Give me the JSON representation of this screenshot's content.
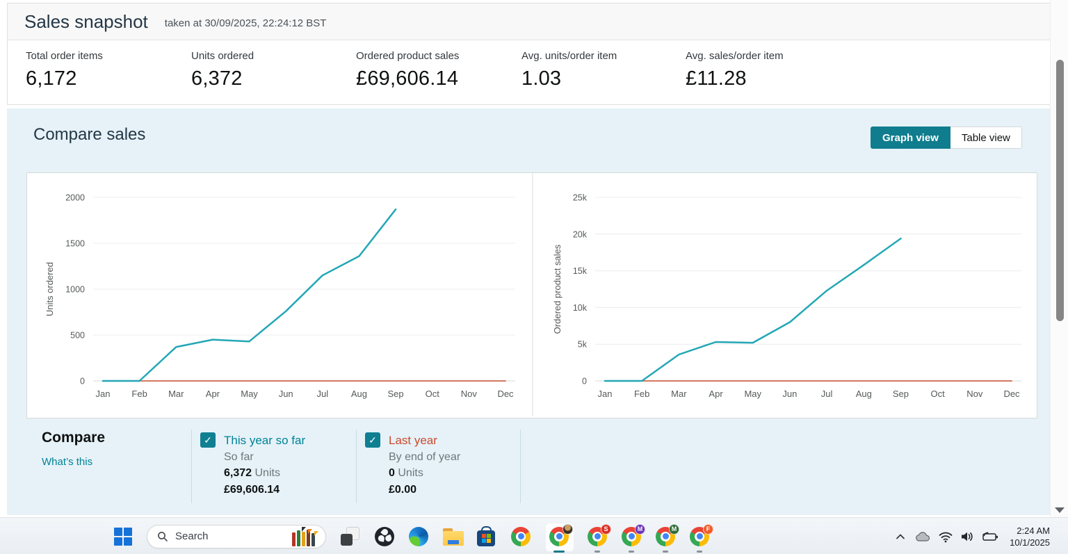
{
  "header": {
    "title": "Sales snapshot",
    "subtitle": "taken at 30/09/2025, 22:24:12 BST"
  },
  "stats": [
    {
      "label": "Total order items",
      "value": "6,172"
    },
    {
      "label": "Units ordered",
      "value": "6,372"
    },
    {
      "label": "Ordered product sales",
      "value": "£69,606.14"
    },
    {
      "label": "Avg. units/order item",
      "value": "1.03"
    },
    {
      "label": "Avg. sales/order item",
      "value": "£11.28"
    }
  ],
  "compare_sales": {
    "title": "Compare sales",
    "view_toggle": {
      "graph_label": "Graph view",
      "table_label": "Table view",
      "selected": "Graph view"
    },
    "legend": {
      "heading": "Compare",
      "link": "What’s this",
      "items": [
        {
          "label": "This year so far",
          "sublabel": "So far",
          "units_value": "6,372",
          "units_word": "Units",
          "sales": "£69,606.14",
          "checked": true,
          "color": "#008296"
        },
        {
          "label": "Last year",
          "sublabel": "By end of year",
          "units_value": "0",
          "units_word": "Units",
          "sales": "£0.00",
          "checked": true,
          "color": "#cc4a2e"
        }
      ]
    }
  },
  "chart_data": [
    {
      "type": "line",
      "title": "Units ordered by month",
      "xlabel": "",
      "ylabel": "Units ordered",
      "categories": [
        "Jan",
        "Feb",
        "Mar",
        "Apr",
        "May",
        "Jun",
        "Jul",
        "Aug",
        "Sep",
        "Oct",
        "Nov",
        "Dec"
      ],
      "ylim": [
        0,
        2000
      ],
      "grid": true,
      "y_ticks": [
        {
          "label": "0",
          "value": 0
        },
        {
          "label": "500",
          "value": 500
        },
        {
          "label": "1000",
          "value": 1000
        },
        {
          "label": "1500",
          "value": 1500
        },
        {
          "label": "2000",
          "value": 2000
        }
      ],
      "series": [
        {
          "name": "This year so far",
          "color": "#23a7b5",
          "values": [
            0,
            0,
            370,
            450,
            430,
            760,
            1150,
            1360,
            1870
          ]
        },
        {
          "name": "Last year",
          "color": "#d3795f",
          "values": [
            0,
            0,
            0,
            0,
            0,
            0,
            0,
            0,
            0,
            0,
            0,
            0
          ]
        }
      ]
    },
    {
      "type": "line",
      "title": "Ordered product sales by month",
      "xlabel": "",
      "ylabel": "Ordered product sales",
      "categories": [
        "Jan",
        "Feb",
        "Mar",
        "Apr",
        "May",
        "Jun",
        "Jul",
        "Aug",
        "Sep",
        "Oct",
        "Nov",
        "Dec"
      ],
      "ylim": [
        0,
        25000
      ],
      "grid": true,
      "y_ticks": [
        {
          "label": "0",
          "value": 0
        },
        {
          "label": "5k",
          "value": 5000
        },
        {
          "label": "10k",
          "value": 10000
        },
        {
          "label": "15k",
          "value": 15000
        },
        {
          "label": "20k",
          "value": 20000
        },
        {
          "label": "25k",
          "value": 25000
        }
      ],
      "series": [
        {
          "name": "This year so far",
          "color": "#23a7b5",
          "values": [
            0,
            0,
            3600,
            5300,
            5200,
            8000,
            12300,
            15800,
            19400
          ]
        },
        {
          "name": "Last year",
          "color": "#d3795f",
          "values": [
            0,
            0,
            0,
            0,
            0,
            0,
            0,
            0,
            0,
            0,
            0,
            0
          ]
        }
      ]
    }
  ],
  "taskbar": {
    "search_placeholder": "Search",
    "clock": {
      "time": "2:24 AM",
      "date": "10/1/2025"
    },
    "chrome_badges": {
      "s": "S",
      "m1": "M",
      "m2": "M",
      "f": "F"
    }
  }
}
